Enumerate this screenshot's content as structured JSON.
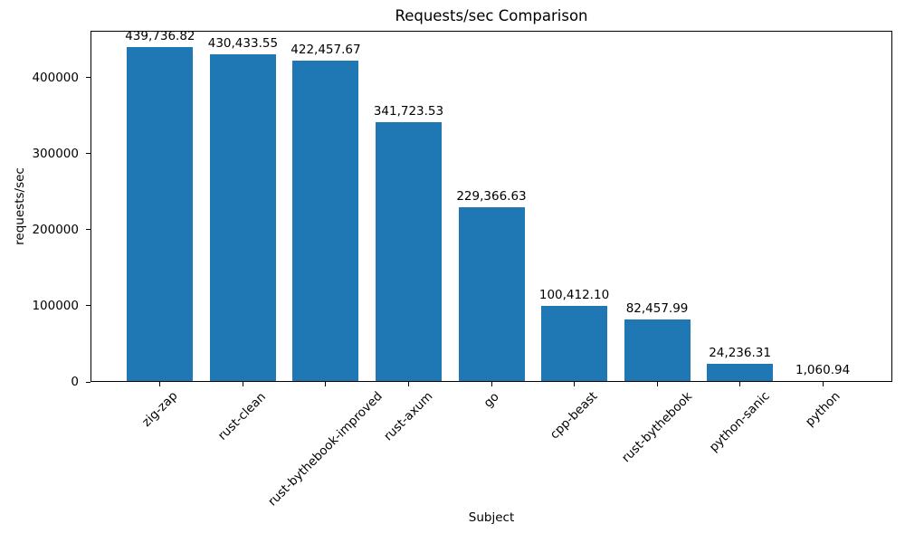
{
  "chart_data": {
    "type": "bar",
    "title": "Requests/sec Comparison",
    "xlabel": "Subject",
    "ylabel": "requests/sec",
    "categories": [
      "zig-zap",
      "rust-clean",
      "rust-bythebook-improved",
      "rust-axum",
      "go",
      "cpp-beast",
      "rust-bythebook",
      "python-sanic",
      "python"
    ],
    "values": [
      439736.82,
      430433.55,
      422457.67,
      341723.53,
      229366.63,
      100412.1,
      82457.99,
      24236.31,
      1060.94
    ],
    "value_labels": [
      "439,736.82",
      "430,433.55",
      "422,457.67",
      "341,723.53",
      "229,366.63",
      "100,412.10",
      "82,457.99",
      "24,236.31",
      "1,060.94"
    ],
    "yticks": [
      0,
      100000,
      200000,
      300000,
      400000
    ],
    "ytick_labels": [
      "0",
      "100000",
      "200000",
      "300000",
      "400000"
    ],
    "ylim": [
      0,
      461724
    ],
    "bar_color": "#1f77b4",
    "grid": false,
    "legend": null
  }
}
